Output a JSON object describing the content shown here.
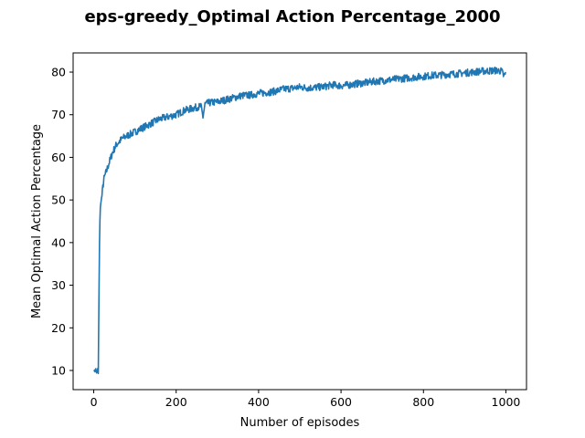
{
  "chart_data": {
    "type": "line",
    "title": "eps-greedy_Optimal Action Percentage_2000",
    "xlabel": "Number of episodes",
    "ylabel": "Mean Optimal Action Percentage",
    "xlim": [
      -50,
      1050
    ],
    "ylim": [
      5.5,
      84.5
    ],
    "xticks": [
      0,
      200,
      400,
      600,
      800,
      1000
    ],
    "yticks": [
      10,
      20,
      30,
      40,
      50,
      60,
      70,
      80
    ],
    "grid": false,
    "legend": "none",
    "series": [
      {
        "color": "#1f77b4",
        "noise": "high-frequency jitter of about ±1 between points, with brief dips near x=265 (≈69) and x=995 (≈79)",
        "x": [
          1,
          3,
          5,
          7,
          9,
          10,
          11,
          12,
          13,
          14,
          15,
          16,
          18,
          20,
          22,
          25,
          28,
          30,
          35,
          40,
          45,
          50,
          55,
          60,
          70,
          80,
          90,
          100,
          120,
          140,
          160,
          180,
          200,
          220,
          240,
          260,
          265,
          270,
          280,
          300,
          320,
          340,
          360,
          380,
          400,
          420,
          440,
          460,
          480,
          500,
          520,
          540,
          560,
          580,
          600,
          620,
          640,
          660,
          680,
          700,
          720,
          740,
          760,
          780,
          800,
          820,
          840,
          860,
          880,
          900,
          920,
          940,
          960,
          980,
          990,
          995,
          1000
        ],
        "y": [
          10,
          9.8,
          10.3,
          9.5,
          9.8,
          10.5,
          9.2,
          20,
          30,
          40,
          45,
          48,
          50,
          51,
          53,
          55,
          56,
          56.5,
          58,
          59.5,
          61,
          62,
          63,
          63.5,
          64.5,
          65,
          65.5,
          66,
          67,
          68,
          69,
          69.5,
          70,
          71,
          71.5,
          72,
          69.5,
          72.5,
          72.8,
          73,
          73.5,
          74,
          74.5,
          74.6,
          75,
          75.2,
          75.5,
          76,
          76.2,
          76.5,
          76.3,
          76.4,
          76.6,
          77,
          76.8,
          77,
          77.3,
          77.5,
          77.8,
          78,
          78.2,
          78.4,
          78.6,
          78.8,
          79,
          79.2,
          79.3,
          79.5,
          79.6,
          79.8,
          80,
          80.2,
          80.3,
          80.4,
          80.2,
          79,
          79.8
        ]
      }
    ]
  }
}
